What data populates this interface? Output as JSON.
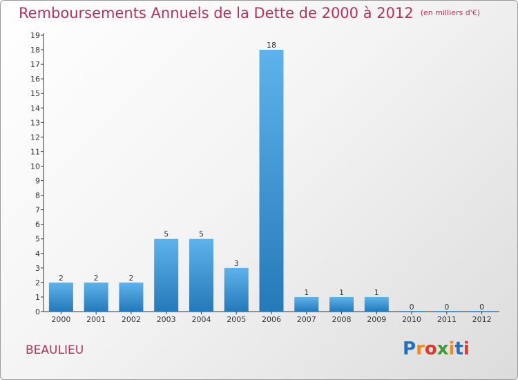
{
  "header": {
    "title": "Remboursements Annuels de la Dette de 2000 à 2012",
    "unit": "(en milliers d'€)"
  },
  "footer": {
    "city": "BEAULIEU",
    "logo_letters": [
      {
        "ch": "P",
        "color": "#1f6fc4"
      },
      {
        "ch": "r",
        "color": "#f08a1c"
      },
      {
        "ch": "o",
        "color": "#e0362c"
      },
      {
        "ch": "x",
        "color": "#3a9d2f"
      },
      {
        "ch": "i",
        "color": "#f08a1c"
      },
      {
        "ch": "t",
        "color": "#1f6fc4"
      },
      {
        "ch": "i",
        "color": "#e0362c"
      }
    ]
  },
  "chart_data": {
    "type": "bar",
    "title": "Remboursements Annuels de la Dette de 2000 à 2012",
    "unit": "(en milliers d'€)",
    "categories": [
      "2000",
      "2001",
      "2002",
      "2003",
      "2004",
      "2005",
      "2006",
      "2007",
      "2008",
      "2009",
      "2010",
      "2011",
      "2012"
    ],
    "values": [
      2,
      2,
      2,
      5,
      5,
      3,
      18,
      1,
      1,
      1,
      0,
      0,
      0
    ],
    "ylim": [
      0,
      19
    ],
    "yticks": [
      "0",
      "1",
      "2",
      "3",
      "4",
      "5",
      "6",
      "7",
      "8",
      "9",
      "10",
      "11",
      "12",
      "13",
      "14",
      "15",
      "16",
      "17",
      "18",
      "19"
    ],
    "grid": false,
    "bar_color": "#3d97dc"
  }
}
